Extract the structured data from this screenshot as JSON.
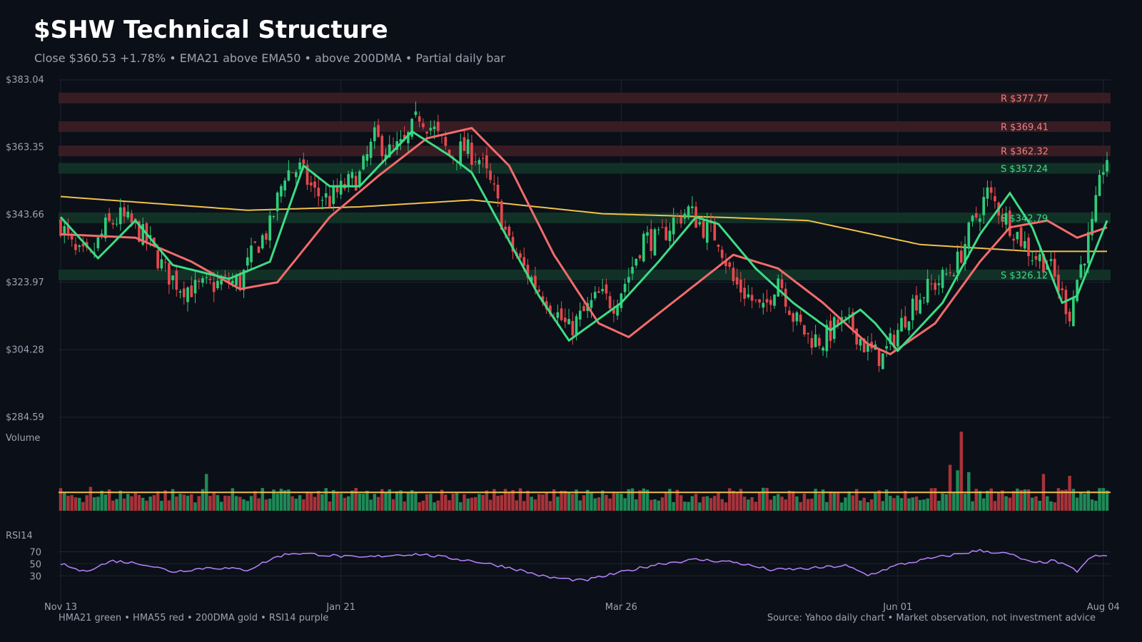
{
  "header": {
    "title": "$SHW Technical Structure",
    "subtitle": "Close $360.53  +1.78%  •  EMA21 above EMA50 • above 200DMA  •  Partial daily bar"
  },
  "panels": {
    "volume_label": "Volume",
    "rsi_label": "RSI14"
  },
  "footer": {
    "legend": "HMA21 green • HMA55 red • 200DMA gold  •  RSI14 purple",
    "source": "Source: Yahoo daily chart • Market observation, not investment advice"
  },
  "colors": {
    "background": "#0b0f17",
    "up": "#2ecc7a",
    "down": "#e5484d",
    "hma21": "#3ddc84",
    "hma55": "#f26b6b",
    "dma200": "#f0c14b",
    "rsi": "#b983ff",
    "grid": "#1e2533",
    "resistance_zone": "#3a1d24",
    "support_zone": "#123428"
  },
  "chart_data": {
    "type": "candlestick",
    "ylim": [
      284.59,
      383.04
    ],
    "y_ticks": [
      "$383.04",
      "$363.35",
      "$343.66",
      "$323.97",
      "$304.28",
      "$284.59"
    ],
    "x_ticks": [
      "Nov 13",
      "Jan 21",
      "Mar 26",
      "Jun 01",
      "Aug 04"
    ],
    "rsi_ticks": [
      "70",
      "50",
      "30"
    ],
    "rsi_ylim": [
      15,
      80
    ],
    "levels": [
      {
        "kind": "resistance",
        "label": "R $377.77",
        "value": 377.77
      },
      {
        "kind": "resistance",
        "label": "R $369.41",
        "value": 369.41
      },
      {
        "kind": "resistance",
        "label": "R $362.32",
        "value": 362.32
      },
      {
        "kind": "support",
        "label": "S $357.24",
        "value": 357.24
      },
      {
        "kind": "support",
        "label": "S $342.79",
        "value": 342.79
      },
      {
        "kind": "support",
        "label": "S $326.12",
        "value": 326.12
      }
    ],
    "close_anchors": [
      [
        0,
        341
      ],
      [
        4,
        332
      ],
      [
        8,
        331
      ],
      [
        12,
        340
      ],
      [
        16,
        343
      ],
      [
        20,
        340
      ],
      [
        24,
        335
      ],
      [
        28,
        327
      ],
      [
        32,
        323
      ],
      [
        36,
        322
      ],
      [
        40,
        323
      ],
      [
        44,
        324
      ],
      [
        48,
        324
      ],
      [
        52,
        334
      ],
      [
        56,
        340
      ],
      [
        60,
        356
      ],
      [
        64,
        357
      ],
      [
        68,
        350
      ],
      [
        72,
        348
      ],
      [
        76,
        352
      ],
      [
        80,
        355
      ],
      [
        84,
        366
      ],
      [
        88,
        362
      ],
      [
        92,
        364
      ],
      [
        96,
        373
      ],
      [
        100,
        368
      ],
      [
        104,
        361
      ],
      [
        108,
        363
      ],
      [
        112,
        360
      ],
      [
        116,
        350
      ],
      [
        120,
        335
      ],
      [
        124,
        328
      ],
      [
        128,
        322
      ],
      [
        132,
        316
      ],
      [
        136,
        310
      ],
      [
        140,
        315
      ],
      [
        144,
        320
      ],
      [
        148,
        318
      ],
      [
        152,
        326
      ],
      [
        156,
        337
      ],
      [
        160,
        336
      ],
      [
        164,
        342
      ],
      [
        168,
        345
      ],
      [
        172,
        340
      ],
      [
        176,
        337
      ],
      [
        180,
        324
      ],
      [
        184,
        320
      ],
      [
        188,
        315
      ],
      [
        192,
        326
      ],
      [
        196,
        314
      ],
      [
        200,
        308
      ],
      [
        204,
        307
      ],
      [
        208,
        312
      ],
      [
        212,
        311
      ],
      [
        216,
        304
      ],
      [
        220,
        302
      ],
      [
        224,
        310
      ],
      [
        228,
        318
      ],
      [
        232,
        322
      ],
      [
        236,
        325
      ],
      [
        240,
        330
      ],
      [
        244,
        341
      ],
      [
        248,
        350
      ],
      [
        252,
        344
      ],
      [
        256,
        338
      ],
      [
        260,
        332
      ],
      [
        264,
        330
      ],
      [
        268,
        320
      ],
      [
        270,
        315
      ],
      [
        272,
        325
      ],
      [
        276,
        340
      ],
      [
        279,
        358
      ],
      [
        280,
        360.53
      ]
    ],
    "dma200_anchors": [
      [
        0,
        349
      ],
      [
        50,
        345
      ],
      [
        80,
        346
      ],
      [
        110,
        348
      ],
      [
        145,
        344
      ],
      [
        175,
        343
      ],
      [
        200,
        342
      ],
      [
        230,
        335
      ],
      [
        260,
        333
      ],
      [
        280,
        333
      ]
    ],
    "hma21_anchors": [
      [
        0,
        343
      ],
      [
        10,
        331
      ],
      [
        20,
        342
      ],
      [
        30,
        329
      ],
      [
        45,
        325
      ],
      [
        56,
        330
      ],
      [
        65,
        358
      ],
      [
        72,
        352
      ],
      [
        80,
        352
      ],
      [
        94,
        368
      ],
      [
        104,
        361
      ],
      [
        110,
        356
      ],
      [
        118,
        340
      ],
      [
        128,
        320
      ],
      [
        136,
        307
      ],
      [
        150,
        318
      ],
      [
        160,
        330
      ],
      [
        170,
        343
      ],
      [
        176,
        341
      ],
      [
        186,
        328
      ],
      [
        196,
        318
      ],
      [
        206,
        310
      ],
      [
        214,
        316
      ],
      [
        218,
        312
      ],
      [
        224,
        304
      ],
      [
        236,
        318
      ],
      [
        246,
        338
      ],
      [
        254,
        350
      ],
      [
        260,
        340
      ],
      [
        268,
        318
      ],
      [
        272,
        320
      ],
      [
        280,
        342
      ]
    ],
    "hma55_anchors": [
      [
        0,
        338
      ],
      [
        20,
        337
      ],
      [
        35,
        330
      ],
      [
        48,
        322
      ],
      [
        58,
        324
      ],
      [
        72,
        343
      ],
      [
        85,
        355
      ],
      [
        98,
        366
      ],
      [
        110,
        369
      ],
      [
        120,
        358
      ],
      [
        132,
        332
      ],
      [
        144,
        312
      ],
      [
        152,
        308
      ],
      [
        166,
        320
      ],
      [
        180,
        332
      ],
      [
        192,
        328
      ],
      [
        204,
        318
      ],
      [
        216,
        306
      ],
      [
        222,
        303
      ],
      [
        234,
        312
      ],
      [
        246,
        330
      ],
      [
        254,
        340
      ],
      [
        264,
        342
      ],
      [
        272,
        337
      ],
      [
        280,
        340
      ]
    ],
    "rsi_anchors": [
      [
        0,
        50
      ],
      [
        6,
        37
      ],
      [
        14,
        55
      ],
      [
        22,
        50
      ],
      [
        30,
        37
      ],
      [
        40,
        44
      ],
      [
        50,
        40
      ],
      [
        58,
        62
      ],
      [
        62,
        68
      ],
      [
        70,
        65
      ],
      [
        80,
        60
      ],
      [
        90,
        65
      ],
      [
        96,
        66
      ],
      [
        110,
        55
      ],
      [
        120,
        44
      ],
      [
        130,
        28
      ],
      [
        140,
        22
      ],
      [
        150,
        36
      ],
      [
        160,
        50
      ],
      [
        170,
        57
      ],
      [
        180,
        53
      ],
      [
        190,
        40
      ],
      [
        200,
        42
      ],
      [
        210,
        47
      ],
      [
        216,
        31
      ],
      [
        224,
        48
      ],
      [
        232,
        58
      ],
      [
        246,
        72
      ],
      [
        254,
        66
      ],
      [
        260,
        51
      ],
      [
        266,
        55
      ],
      [
        272,
        38
      ],
      [
        276,
        62
      ],
      [
        280,
        63
      ]
    ],
    "volume_avg": 1.0,
    "volume_spikes": [
      [
        8,
        1.3
      ],
      [
        39,
        2.0
      ],
      [
        238,
        2.5
      ],
      [
        240,
        2.2
      ],
      [
        241,
        4.3
      ],
      [
        243,
        2.1
      ],
      [
        263,
        2.0
      ],
      [
        270,
        1.9
      ]
    ],
    "candle_count": 281
  }
}
